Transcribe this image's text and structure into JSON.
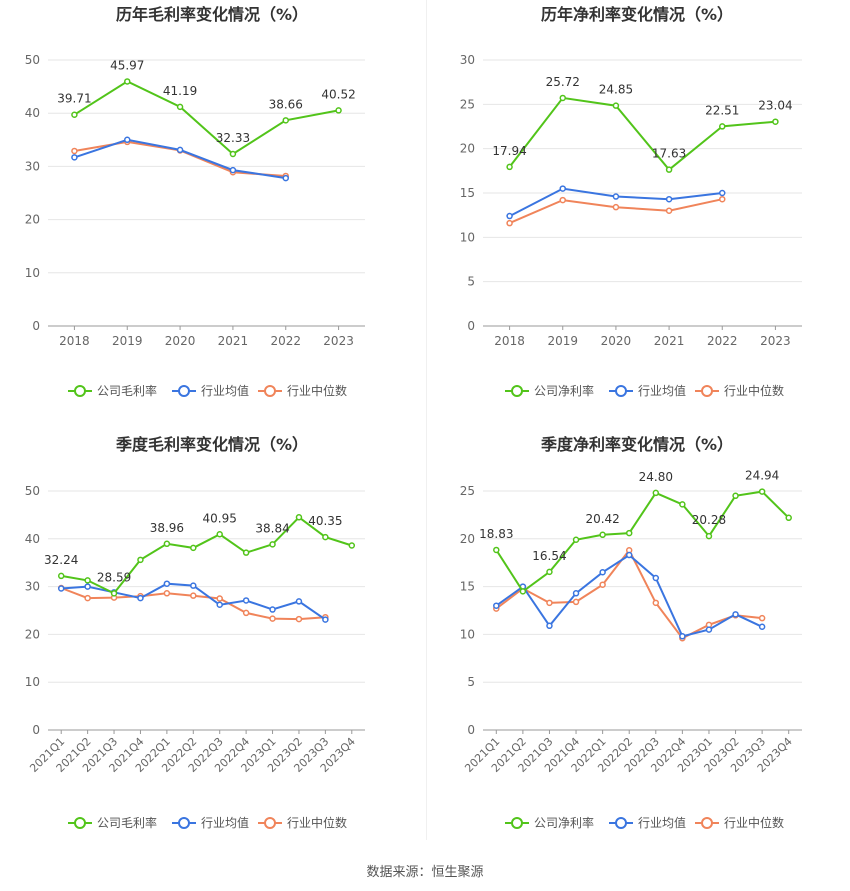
{
  "colors": {
    "company": "#52c41a",
    "avg": "#3a75e0",
    "median": "#f0845a",
    "grid": "#e6e6e6",
    "axis": "#666666",
    "title": "#333333"
  },
  "legend": {
    "company_gross": "公司毛利率",
    "company_net": "公司净利率",
    "avg": "行业均值",
    "median": "行业中位数"
  },
  "source": "数据来源：恒生聚源",
  "chart_data": [
    {
      "type": "line",
      "title": "历年毛利率变化情况（%）",
      "categories": [
        "2018",
        "2019",
        "2020",
        "2021",
        "2022",
        "2023"
      ],
      "ylim": [
        0,
        50
      ],
      "yticks": [
        0,
        10,
        20,
        30,
        40,
        50
      ],
      "series": [
        {
          "name": "公司毛利率",
          "values": [
            39.71,
            45.97,
            41.19,
            32.33,
            38.66,
            40.52
          ],
          "labels": [
            "39.71",
            "45.97",
            "41.19",
            "32.33",
            "38.66",
            "40.52"
          ]
        },
        {
          "name": "行业均值",
          "values": [
            31.7,
            35.0,
            33.1,
            29.3,
            27.8,
            null
          ]
        },
        {
          "name": "行业中位数",
          "values": [
            32.9,
            34.6,
            33.0,
            28.9,
            28.2,
            null
          ]
        }
      ]
    },
    {
      "type": "line",
      "title": "历年净利率变化情况（%）",
      "categories": [
        "2018",
        "2019",
        "2020",
        "2021",
        "2022",
        "2023"
      ],
      "ylim": [
        0,
        30
      ],
      "yticks": [
        0,
        5,
        10,
        15,
        20,
        25,
        30
      ],
      "series": [
        {
          "name": "公司净利率",
          "values": [
            17.94,
            25.72,
            24.85,
            17.63,
            22.51,
            23.04
          ],
          "labels": [
            "17.94",
            "25.72",
            "24.85",
            "17.63",
            "22.51",
            "23.04"
          ]
        },
        {
          "name": "行业均值",
          "values": [
            12.4,
            15.5,
            14.6,
            14.3,
            15.0,
            null
          ]
        },
        {
          "name": "行业中位数",
          "values": [
            11.6,
            14.2,
            13.4,
            13.0,
            14.3,
            null
          ]
        }
      ]
    },
    {
      "type": "line",
      "title": "季度毛利率变化情况（%）",
      "categories": [
        "2021Q1",
        "2021Q2",
        "2021Q3",
        "2021Q4",
        "2022Q1",
        "2022Q2",
        "2022Q3",
        "2022Q4",
        "2023Q1",
        "2023Q2",
        "2023Q3",
        "2023Q4"
      ],
      "ylim": [
        0,
        50
      ],
      "yticks": [
        0,
        10,
        20,
        30,
        40,
        50
      ],
      "series": [
        {
          "name": "公司毛利率",
          "values": [
            32.24,
            31.3,
            28.59,
            35.6,
            38.96,
            38.1,
            40.95,
            37.1,
            38.84,
            44.5,
            40.35,
            38.6
          ],
          "labels": [
            "32.24",
            "",
            "28.59",
            "",
            "38.96",
            "",
            "40.95",
            "",
            "38.84",
            "",
            "40.35",
            ""
          ]
        },
        {
          "name": "行业均值",
          "values": [
            29.6,
            30.0,
            28.8,
            27.6,
            30.6,
            30.2,
            26.2,
            27.1,
            25.2,
            26.9,
            23.1,
            null
          ]
        },
        {
          "name": "行业中位数",
          "values": [
            29.7,
            27.6,
            27.7,
            28.0,
            28.6,
            28.1,
            27.5,
            24.5,
            23.3,
            23.2,
            23.6,
            null
          ]
        }
      ]
    },
    {
      "type": "line",
      "title": "季度净利率变化情况（%）",
      "categories": [
        "2021Q1",
        "2021Q2",
        "2021Q3",
        "2021Q4",
        "2022Q1",
        "2022Q2",
        "2022Q3",
        "2022Q4",
        "2023Q1",
        "2023Q2",
        "2023Q3",
        "2023Q4"
      ],
      "ylim": [
        0,
        25
      ],
      "yticks": [
        0,
        5,
        10,
        15,
        20,
        25
      ],
      "series": [
        {
          "name": "公司净利率",
          "values": [
            18.83,
            14.5,
            16.54,
            19.9,
            20.42,
            20.6,
            24.8,
            23.6,
            20.28,
            24.5,
            24.94,
            22.2
          ],
          "labels": [
            "18.83",
            "",
            "16.54",
            "",
            "20.42",
            "",
            "24.80",
            "",
            "20.28",
            "",
            "24.94",
            ""
          ]
        },
        {
          "name": "行业均值",
          "values": [
            13.0,
            15.0,
            10.9,
            14.3,
            16.5,
            18.3,
            15.9,
            9.8,
            10.5,
            12.1,
            10.8,
            null
          ]
        },
        {
          "name": "行业中位数",
          "values": [
            12.7,
            14.8,
            13.3,
            13.4,
            15.2,
            18.8,
            13.3,
            9.6,
            11.0,
            12.0,
            11.7,
            null
          ]
        }
      ]
    }
  ]
}
